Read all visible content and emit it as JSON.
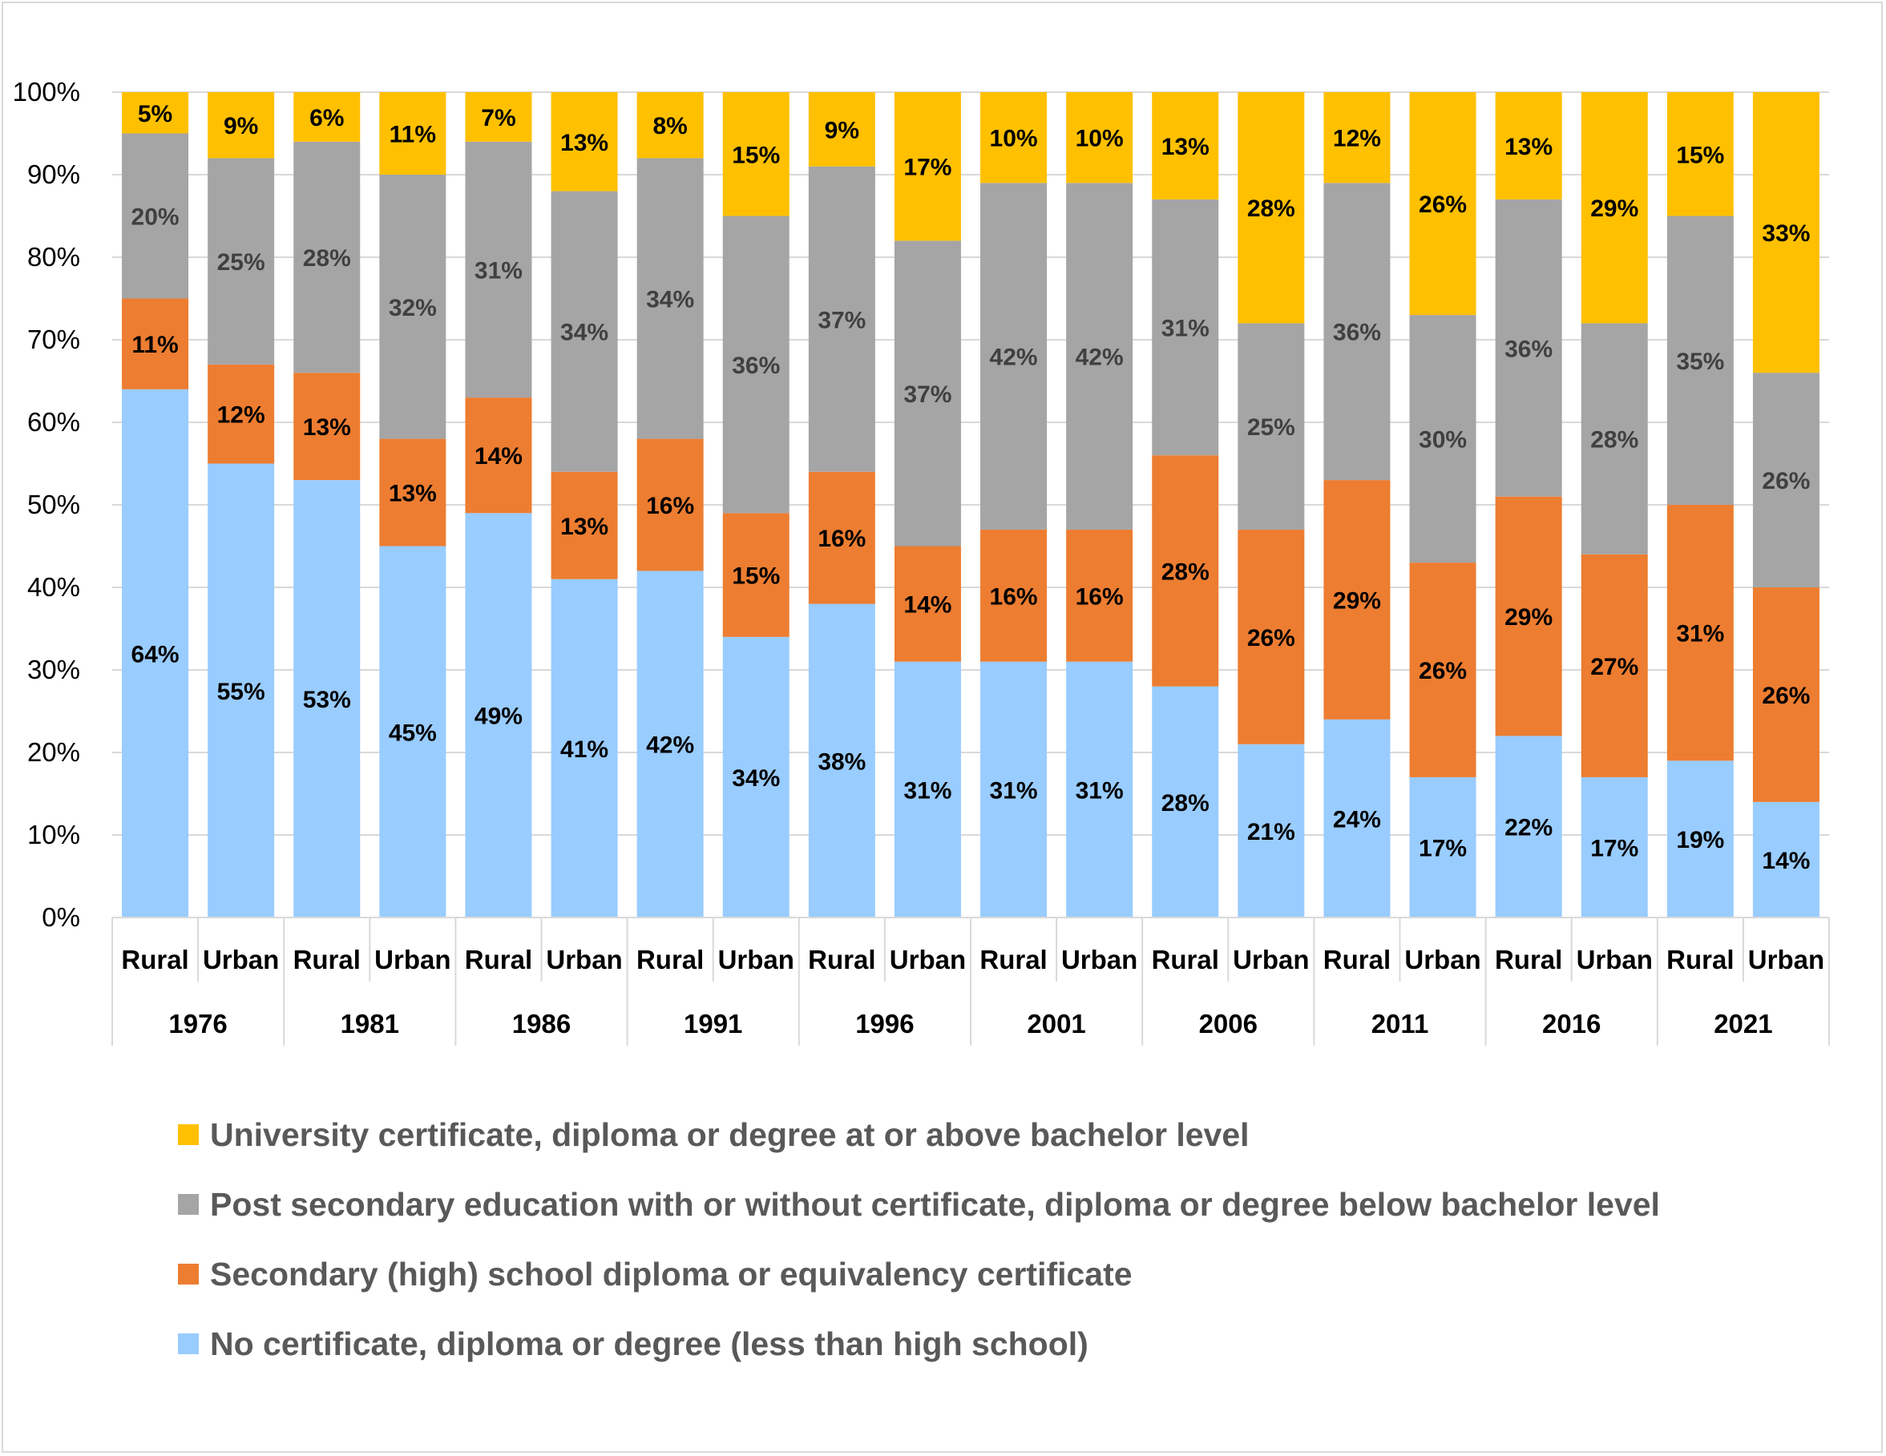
{
  "chart_data": {
    "type": "bar",
    "stacked": true,
    "normalized": true,
    "title": "",
    "xlabel": "",
    "ylabel": "",
    "ylim": [
      0,
      100
    ],
    "yticks": [
      "0%",
      "10%",
      "20%",
      "30%",
      "40%",
      "50%",
      "60%",
      "70%",
      "80%",
      "90%",
      "100%"
    ],
    "grid": true,
    "legend_position": "bottom",
    "years": [
      "1976",
      "1981",
      "1986",
      "1991",
      "1996",
      "2001",
      "2006",
      "2011",
      "2016",
      "2021"
    ],
    "groups": [
      "Rural",
      "Urban"
    ],
    "categories": [
      "Rural 1976",
      "Urban 1976",
      "Rural 1981",
      "Urban 1981",
      "Rural 1986",
      "Urban 1986",
      "Rural 1991",
      "Urban 1991",
      "Rural 1996",
      "Urban 1996",
      "Rural 2001",
      "Urban 2001",
      "Rural 2006",
      "Urban 2006",
      "Rural 2011",
      "Urban 2011",
      "Rural 2016",
      "Urban 2016",
      "Rural 2021",
      "Urban 2021"
    ],
    "series": [
      {
        "name": "No certificate, diploma or degree (less than high school)",
        "color": "#99ccff",
        "values": [
          64,
          55,
          53,
          45,
          49,
          41,
          42,
          34,
          38,
          31,
          31,
          31,
          28,
          21,
          24,
          17,
          22,
          17,
          19,
          14
        ],
        "labels": [
          "64%",
          "55%",
          "53%",
          "45%",
          "49%",
          "41%",
          "42%",
          "34%",
          "38%",
          "31%",
          "31%",
          "31%",
          "28%",
          "21%",
          "24%",
          "17%",
          "22%",
          "17%",
          "19%",
          "14%"
        ]
      },
      {
        "name": "Secondary (high) school diploma or equivalency certificate",
        "color": "#ed7d31",
        "values": [
          11,
          12,
          13,
          13,
          14,
          13,
          16,
          15,
          16,
          14,
          16,
          16,
          28,
          26,
          29,
          26,
          29,
          27,
          31,
          26
        ],
        "labels": [
          "11%",
          "12%",
          "13%",
          "13%",
          "14%",
          "13%",
          "16%",
          "15%",
          "16%",
          "14%",
          "16%",
          "16%",
          "28%",
          "26%",
          "29%",
          "26%",
          "29%",
          "27%",
          "31%",
          "26%"
        ]
      },
      {
        "name": "Post secondary education with or without certificate, diploma or degree below bachelor level",
        "color": "#a5a5a5",
        "values": [
          20,
          25,
          28,
          32,
          31,
          34,
          34,
          36,
          37,
          37,
          42,
          42,
          31,
          25,
          36,
          30,
          36,
          28,
          35,
          26
        ],
        "labels": [
          "20%",
          "25%",
          "28%",
          "32%",
          "31%",
          "34%",
          "34%",
          "36%",
          "37%",
          "37%",
          "42%",
          "42%",
          "31%",
          "25%",
          "36%",
          "30%",
          "36%",
          "28%",
          "35%",
          "26%"
        ]
      },
      {
        "name": "University certificate, diploma or degree at or above bachelor level",
        "color": "#ffc000",
        "values": [
          5,
          9,
          6,
          11,
          7,
          13,
          8,
          15,
          9,
          17,
          10,
          10,
          13,
          28,
          12,
          26,
          13,
          29,
          15,
          33
        ],
        "labels": [
          "5%",
          "9%",
          "6%",
          "11%",
          "7%",
          "13%",
          "8%",
          "15%",
          "9%",
          "17%",
          "10%",
          "10%",
          "13%",
          "28%",
          "12%",
          "26%",
          "13%",
          "29%",
          "15%",
          "33%"
        ]
      }
    ],
    "legend_order": [
      3,
      2,
      1,
      0
    ]
  }
}
